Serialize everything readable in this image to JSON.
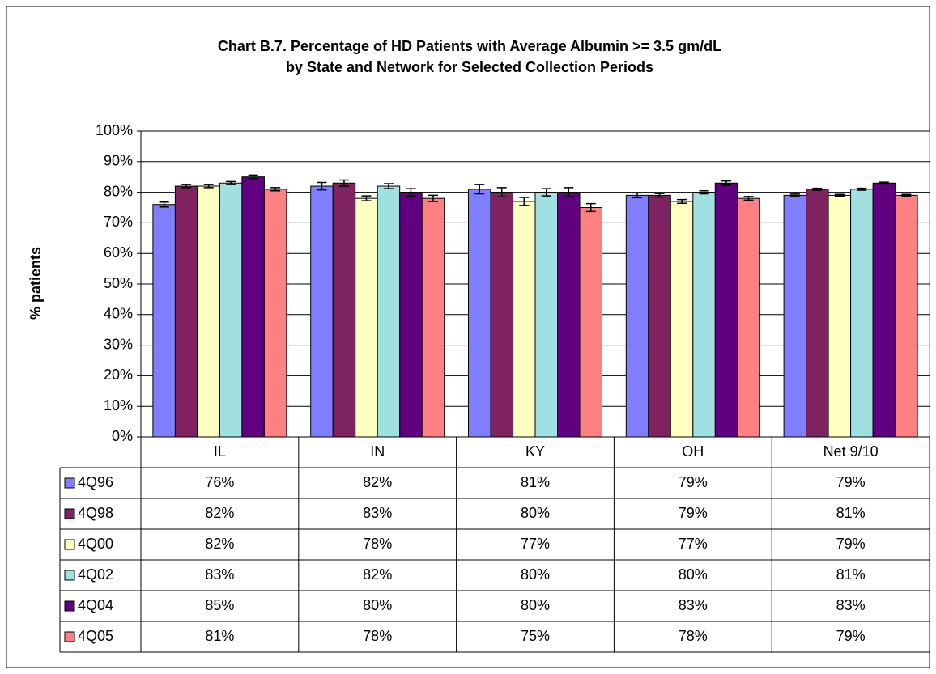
{
  "chart_data": {
    "type": "bar",
    "title": [
      "Chart B.7. Percentage of HD Patients with Average Albumin >= 3.5 gm/dL",
      "by State and Network for Selected Collection Periods"
    ],
    "y_label": "% patients",
    "categories": [
      "IL",
      "IN",
      "KY",
      "OH",
      "Net 9/10"
    ],
    "series": [
      {
        "name": "4Q96",
        "color": "#7f7fff",
        "values": [
          76,
          82,
          81,
          79,
          79
        ],
        "value_labels": [
          "76%",
          "82%",
          "81%",
          "79%",
          "79%"
        ],
        "errors": [
          0.8,
          1.2,
          1.5,
          0.8,
          0.4
        ]
      },
      {
        "name": "4Q98",
        "color": "#7f2360",
        "values": [
          82,
          83,
          80,
          79,
          81
        ],
        "value_labels": [
          "82%",
          "83%",
          "80%",
          "79%",
          "81%"
        ],
        "errors": [
          0.5,
          1.0,
          1.5,
          0.6,
          0.3
        ]
      },
      {
        "name": "4Q00",
        "color": "#ffffc0",
        "values": [
          82,
          78,
          77,
          77,
          79
        ],
        "value_labels": [
          "82%",
          "78%",
          "77%",
          "77%",
          "79%"
        ],
        "errors": [
          0.5,
          0.8,
          1.3,
          0.6,
          0.3
        ]
      },
      {
        "name": "4Q02",
        "color": "#a0e0e0",
        "values": [
          83,
          82,
          80,
          80,
          81
        ],
        "value_labels": [
          "83%",
          "82%",
          "80%",
          "80%",
          "81%"
        ],
        "errors": [
          0.5,
          0.8,
          1.2,
          0.5,
          0.3
        ]
      },
      {
        "name": "4Q04",
        "color": "#600080",
        "values": [
          85,
          80,
          80,
          83,
          83
        ],
        "value_labels": [
          "85%",
          "80%",
          "80%",
          "83%",
          "83%"
        ],
        "errors": [
          0.6,
          1.2,
          1.5,
          0.7,
          0.3
        ]
      },
      {
        "name": "4Q05",
        "color": "#ff8080",
        "values": [
          81,
          78,
          75,
          78,
          79
        ],
        "value_labels": [
          "81%",
          "78%",
          "75%",
          "78%",
          "79%"
        ],
        "errors": [
          0.5,
          1.0,
          1.3,
          0.6,
          0.3
        ]
      }
    ],
    "ylim": [
      0,
      100
    ],
    "yticks": [
      {
        "value": 0,
        "label": "0%"
      },
      {
        "value": 10,
        "label": "10%"
      },
      {
        "value": 20,
        "label": "20%"
      },
      {
        "value": 30,
        "label": "30%"
      },
      {
        "value": 40,
        "label": "40%"
      },
      {
        "value": 50,
        "label": "50%"
      },
      {
        "value": 60,
        "label": "60%"
      },
      {
        "value": 70,
        "label": "70%"
      },
      {
        "value": 80,
        "label": "80%"
      },
      {
        "value": 90,
        "label": "90%"
      },
      {
        "value": 100,
        "label": "100%"
      }
    ],
    "grid": true
  }
}
